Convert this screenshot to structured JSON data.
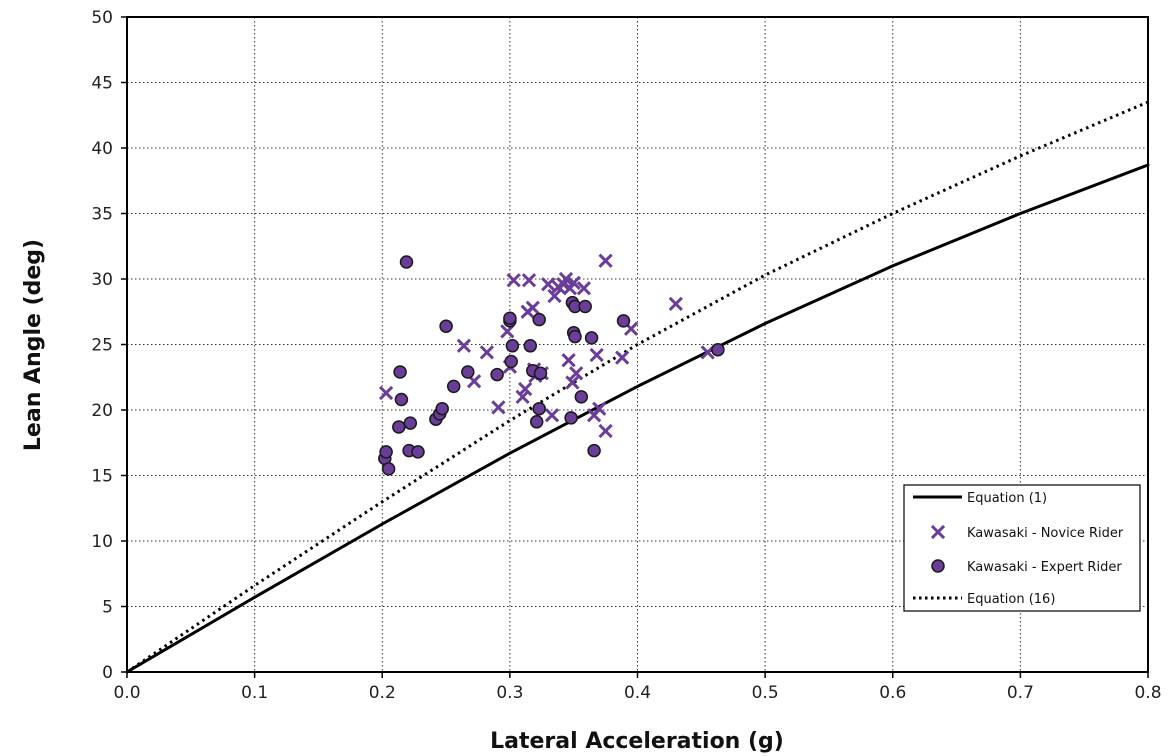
{
  "chart_data": {
    "type": "scatter",
    "xlabel": "Lateral Acceleration (g)",
    "ylabel": "Lean Angle (deg)",
    "xlim": [
      0,
      0.8
    ],
    "ylim": [
      0,
      50
    ],
    "x_ticks": [
      "0.0",
      "0.1",
      "0.2",
      "0.3",
      "0.4",
      "0.5",
      "0.6",
      "0.7",
      "0.8"
    ],
    "y_ticks": [
      "0",
      "5",
      "10",
      "15",
      "20",
      "25",
      "30",
      "35",
      "40",
      "45",
      "50"
    ],
    "grid": true,
    "legend_position": "bottom-right",
    "marker_color": "#6a3d99",
    "series": [
      {
        "name": "Equation (1)",
        "type": "line",
        "style": "solid",
        "color": "#000000",
        "x": [
          0,
          0.1,
          0.2,
          0.3,
          0.4,
          0.5,
          0.6,
          0.7,
          0.8
        ],
        "y": [
          0,
          5.7,
          11.3,
          16.7,
          21.8,
          26.6,
          31.0,
          35.0,
          38.7
        ]
      },
      {
        "name": "Kawasaki - Novice Rider",
        "type": "scatter",
        "marker": "x",
        "color": "#6a3d99",
        "x": [
          0.203,
          0.264,
          0.272,
          0.282,
          0.291,
          0.298,
          0.3,
          0.303,
          0.31,
          0.312,
          0.314,
          0.315,
          0.318,
          0.319,
          0.32,
          0.325,
          0.33,
          0.333,
          0.335,
          0.338,
          0.342,
          0.344,
          0.346,
          0.347,
          0.349,
          0.35,
          0.352,
          0.358,
          0.366,
          0.368,
          0.37,
          0.375,
          0.375,
          0.388,
          0.395,
          0.43,
          0.455
        ],
        "y": [
          21.3,
          24.9,
          22.2,
          24.4,
          20.2,
          26.0,
          23.3,
          29.9,
          21.0,
          21.6,
          27.5,
          29.9,
          27.8,
          23.1,
          22.6,
          22.8,
          29.6,
          19.6,
          28.7,
          29.4,
          29.6,
          30.0,
          23.8,
          29.3,
          22.1,
          29.7,
          22.8,
          29.3,
          19.6,
          24.2,
          20.1,
          31.4,
          18.4,
          24.0,
          26.2,
          28.1,
          24.4
        ]
      },
      {
        "name": "Kawasaki - Expert Rider",
        "type": "scatter",
        "marker": "circle",
        "color": "#6a3d99",
        "x": [
          0.202,
          0.203,
          0.205,
          0.213,
          0.214,
          0.215,
          0.219,
          0.221,
          0.222,
          0.228,
          0.242,
          0.245,
          0.247,
          0.25,
          0.256,
          0.267,
          0.29,
          0.3,
          0.3,
          0.301,
          0.302,
          0.316,
          0.318,
          0.321,
          0.323,
          0.323,
          0.324,
          0.348,
          0.349,
          0.35,
          0.351,
          0.351,
          0.356,
          0.359,
          0.364,
          0.366,
          0.389,
          0.463
        ],
        "y": [
          16.3,
          16.8,
          15.5,
          18.7,
          22.9,
          20.8,
          31.3,
          16.9,
          19.0,
          16.8,
          19.3,
          19.7,
          20.1,
          26.4,
          21.8,
          22.9,
          22.7,
          26.8,
          27.0,
          23.7,
          24.9,
          24.9,
          23.0,
          19.1,
          20.1,
          26.9,
          22.8,
          19.4,
          28.2,
          25.9,
          25.6,
          27.9,
          21.0,
          27.9,
          25.5,
          16.9,
          26.8,
          24.6
        ]
      },
      {
        "name": "Equation (16)",
        "type": "line",
        "style": "dotted",
        "color": "#000000",
        "x": [
          0,
          0.1,
          0.2,
          0.3,
          0.4,
          0.5,
          0.6,
          0.7,
          0.8
        ],
        "y": [
          0,
          6.6,
          13.0,
          19.2,
          25.0,
          30.3,
          35.0,
          39.4,
          43.5
        ]
      }
    ]
  }
}
